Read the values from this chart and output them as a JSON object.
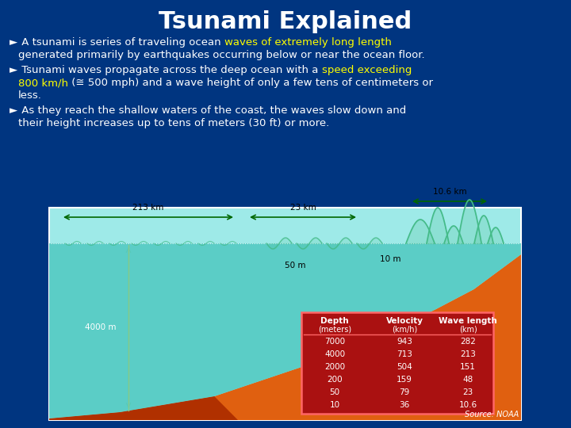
{
  "title": "Tsunami Explained",
  "title_fontsize": 22,
  "title_color": "#FFFFFF",
  "bg_color": "#003580",
  "text_color": "#FFFFFF",
  "yellow_color": "#FFFF00",
  "bullet": "►",
  "source": "Source: NOAA",
  "table_headers_line1": [
    "Depth",
    "Velocity",
    "Wave length"
  ],
  "table_headers_line2": [
    "(meters)",
    "(km/h)",
    "(km)"
  ],
  "table_data": [
    [
      "7000",
      "943",
      "282"
    ],
    [
      "4000",
      "713",
      "213"
    ],
    [
      "2000",
      "504",
      "151"
    ],
    [
      "200",
      "159",
      "48"
    ],
    [
      "50",
      "79",
      "23"
    ],
    [
      "10",
      "36",
      "10.6"
    ]
  ],
  "label_213km": "213 km",
  "label_23km": "23 km",
  "label_10_6km": "10.6 km",
  "label_4000m": "4000 m",
  "label_50m": "50 m",
  "label_10m": "10 m",
  "ocean_light": "#9EEAE8",
  "ocean_deep": "#50C8C0",
  "seafloor_top": "#E06010",
  "seafloor_bot": "#B03000",
  "table_bg": "#AA1111",
  "table_header_sep": "#FF6666",
  "table_border": "#FF6666",
  "arrow_color": "#006600",
  "wave_color": "#44BB88",
  "diag_border": "#AAAAAA",
  "fs_body": 9.5,
  "fs_diagram": 7.5
}
